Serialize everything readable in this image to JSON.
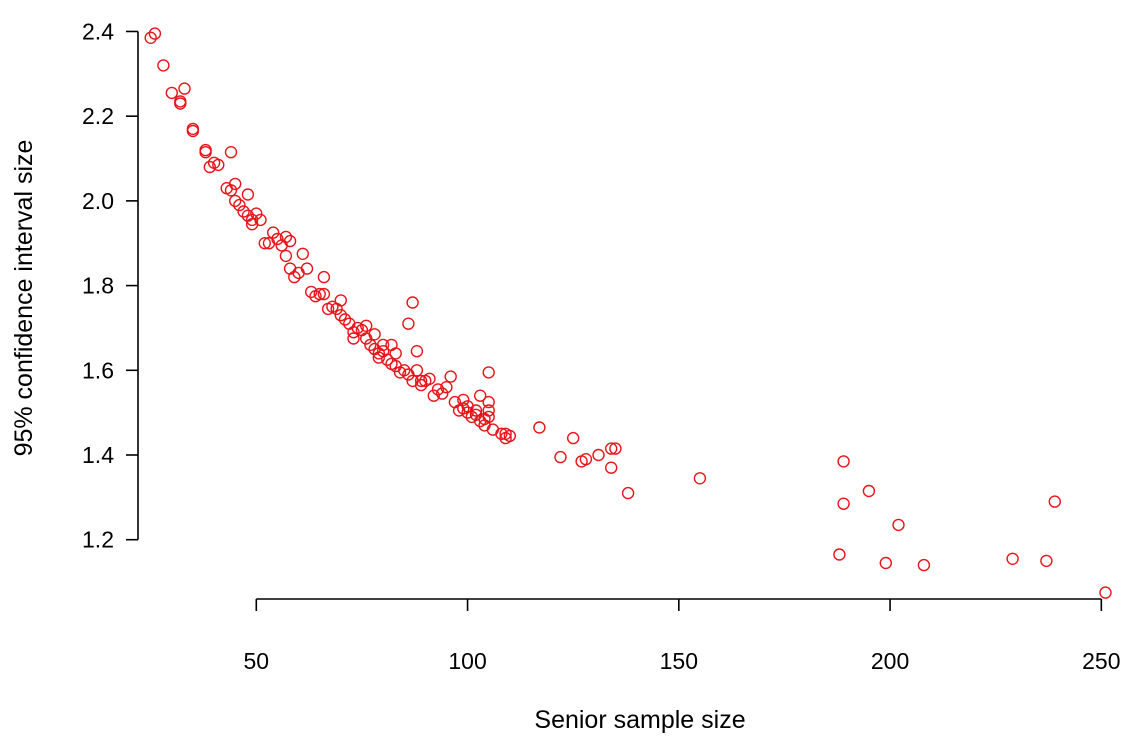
{
  "chart_data": {
    "type": "scatter",
    "title": "",
    "xlabel": "Senior sample size",
    "ylabel": "95% confidence interval size",
    "xlim": [
      22,
      253
    ],
    "ylim": [
      1.06,
      2.42
    ],
    "xticks": [
      50,
      100,
      150,
      200,
      250
    ],
    "yticks": [
      1.2,
      1.4,
      1.6,
      1.8,
      2.0,
      2.2,
      2.4
    ],
    "x_tick_labels": [
      "50",
      "100",
      "150",
      "200",
      "250"
    ],
    "y_tick_labels": [
      "1.2",
      "1.4",
      "1.6",
      "1.8",
      "2.0",
      "2.2",
      "2.4"
    ],
    "grid": false,
    "marker": "open-circle",
    "point_color": "#e8141a",
    "axis_color": "#000000",
    "series": [
      {
        "points": [
          [
            25,
            2.385
          ],
          [
            26,
            2.395
          ],
          [
            28,
            2.32
          ],
          [
            30,
            2.255
          ],
          [
            32,
            2.23
          ],
          [
            32,
            2.235
          ],
          [
            33,
            2.265
          ],
          [
            35,
            2.165
          ],
          [
            35,
            2.17
          ],
          [
            38,
            2.115
          ],
          [
            38,
            2.12
          ],
          [
            39,
            2.08
          ],
          [
            40,
            2.09
          ],
          [
            41,
            2.085
          ],
          [
            43,
            2.03
          ],
          [
            44,
            2.115
          ],
          [
            44,
            2.025
          ],
          [
            45,
            2.04
          ],
          [
            45,
            2.0
          ],
          [
            46,
            1.99
          ],
          [
            47,
            1.975
          ],
          [
            48,
            1.965
          ],
          [
            48,
            2.015
          ],
          [
            49,
            1.955
          ],
          [
            49,
            1.945
          ],
          [
            50,
            1.97
          ],
          [
            51,
            1.955
          ],
          [
            52,
            1.9
          ],
          [
            53,
            1.9
          ],
          [
            54,
            1.925
          ],
          [
            55,
            1.91
          ],
          [
            56,
            1.895
          ],
          [
            57,
            1.915
          ],
          [
            57,
            1.87
          ],
          [
            58,
            1.905
          ],
          [
            58,
            1.84
          ],
          [
            59,
            1.82
          ],
          [
            60,
            1.83
          ],
          [
            61,
            1.875
          ],
          [
            62,
            1.84
          ],
          [
            63,
            1.785
          ],
          [
            64,
            1.775
          ],
          [
            65,
            1.78
          ],
          [
            66,
            1.82
          ],
          [
            66,
            1.78
          ],
          [
            67,
            1.745
          ],
          [
            68,
            1.75
          ],
          [
            69,
            1.745
          ],
          [
            70,
            1.765
          ],
          [
            70,
            1.73
          ],
          [
            71,
            1.72
          ],
          [
            72,
            1.71
          ],
          [
            73,
            1.69
          ],
          [
            73,
            1.675
          ],
          [
            74,
            1.7
          ],
          [
            75,
            1.695
          ],
          [
            76,
            1.705
          ],
          [
            76,
            1.675
          ],
          [
            77,
            1.66
          ],
          [
            78,
            1.685
          ],
          [
            78,
            1.65
          ],
          [
            79,
            1.64
          ],
          [
            79,
            1.63
          ],
          [
            80,
            1.66
          ],
          [
            80,
            1.645
          ],
          [
            81,
            1.625
          ],
          [
            82,
            1.66
          ],
          [
            82,
            1.615
          ],
          [
            83,
            1.61
          ],
          [
            83,
            1.64
          ],
          [
            84,
            1.595
          ],
          [
            85,
            1.6
          ],
          [
            86,
            1.71
          ],
          [
            86,
            1.59
          ],
          [
            87,
            1.76
          ],
          [
            87,
            1.575
          ],
          [
            88,
            1.6
          ],
          [
            88,
            1.645
          ],
          [
            89,
            1.565
          ],
          [
            89,
            1.575
          ],
          [
            90,
            1.575
          ],
          [
            91,
            1.58
          ],
          [
            92,
            1.54
          ],
          [
            93,
            1.555
          ],
          [
            94,
            1.545
          ],
          [
            95,
            1.56
          ],
          [
            96,
            1.585
          ],
          [
            97,
            1.525
          ],
          [
            98,
            1.505
          ],
          [
            99,
            1.51
          ],
          [
            99,
            1.53
          ],
          [
            100,
            1.5
          ],
          [
            100,
            1.515
          ],
          [
            101,
            1.49
          ],
          [
            102,
            1.505
          ],
          [
            102,
            1.495
          ],
          [
            103,
            1.48
          ],
          [
            103,
            1.54
          ],
          [
            104,
            1.47
          ],
          [
            104,
            1.485
          ],
          [
            105,
            1.505
          ],
          [
            105,
            1.525
          ],
          [
            105,
            1.595
          ],
          [
            105,
            1.49
          ],
          [
            106,
            1.46
          ],
          [
            108,
            1.45
          ],
          [
            109,
            1.44
          ],
          [
            109,
            1.45
          ],
          [
            110,
            1.445
          ],
          [
            117,
            1.465
          ],
          [
            122,
            1.395
          ],
          [
            125,
            1.44
          ],
          [
            127,
            1.385
          ],
          [
            128,
            1.39
          ],
          [
            131,
            1.4
          ],
          [
            134,
            1.415
          ],
          [
            134,
            1.37
          ],
          [
            135,
            1.415
          ],
          [
            138,
            1.31
          ],
          [
            155,
            1.345
          ],
          [
            188,
            1.165
          ],
          [
            189,
            1.385
          ],
          [
            189,
            1.285
          ],
          [
            195,
            1.315
          ],
          [
            199,
            1.145
          ],
          [
            202,
            1.235
          ],
          [
            208,
            1.14
          ],
          [
            229,
            1.155
          ],
          [
            237,
            1.15
          ],
          [
            239,
            1.29
          ],
          [
            251,
            1.075
          ]
        ]
      }
    ]
  }
}
